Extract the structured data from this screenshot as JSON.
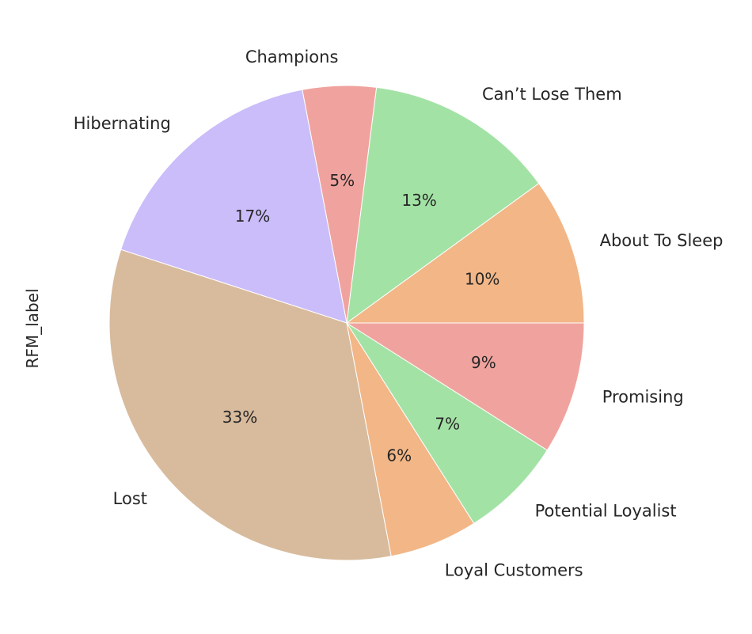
{
  "chart_data": {
    "type": "pie",
    "ylabel": "RFM_label",
    "categories": [
      "About To Sleep",
      "Can’t Lose Them",
      "Champions",
      "Hibernating",
      "Lost",
      "Loyal Customers",
      "Potential Loyalist",
      "Promising"
    ],
    "values": [
      10,
      13,
      5,
      17,
      33,
      6,
      7,
      9
    ],
    "value_labels": [
      "10%",
      "13%",
      "5%",
      "17%",
      "33%",
      "6%",
      "7%",
      "9%"
    ],
    "colors": [
      "#f2b687",
      "#a3e2a5",
      "#f0a39e",
      "#cbbcfa",
      "#d8bb9d",
      "#f2b687",
      "#a3e2a5",
      "#f0a39e"
    ],
    "start_angle_deg": 0,
    "direction": "counterclockwise",
    "legend": "none"
  }
}
